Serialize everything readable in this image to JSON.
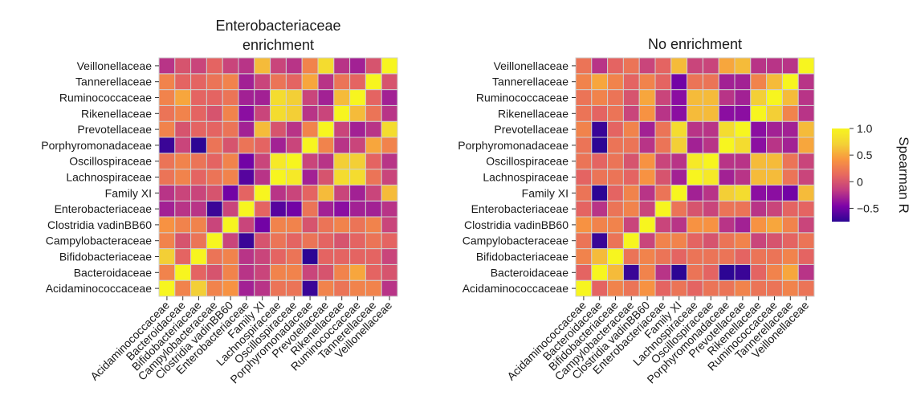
{
  "chart_data": {
    "type": "heatmap",
    "categories": [
      "Acidaminococcaceae",
      "Bacteroidaceae",
      "Bifidobacteriaceae",
      "Campylobacteraceae",
      "Clostridia vadinBB60",
      "Enterobacteriaceae",
      "Family XI",
      "Lachnospiraceae",
      "Oscillospiraceae",
      "Porphyromonadaceae",
      "Prevotellaceae",
      "Rikenellaceae",
      "Ruminococcaceae",
      "Tannerellaceae",
      "Veillonellaceae"
    ],
    "panels": [
      {
        "title_lines": [
          "Enterobacteriaceae",
          "enrichment"
        ],
        "matrix": [
          [
            1.0,
            0.3,
            0.7,
            0.3,
            0.4,
            -0.3,
            -0.2,
            0.2,
            0.2,
            -0.7,
            0.3,
            0.2,
            0.3,
            0.3,
            -0.2
          ],
          [
            0.3,
            1.0,
            0.1,
            0.0,
            0.3,
            -0.2,
            -0.1,
            0.3,
            0.3,
            -0.1,
            0.0,
            0.3,
            0.5,
            0.1,
            0.0
          ],
          [
            0.7,
            0.1,
            1.0,
            0.2,
            0.3,
            -0.2,
            -0.1,
            0.1,
            0.2,
            -0.8,
            0.1,
            0.1,
            0.1,
            0.1,
            -0.1
          ],
          [
            0.3,
            0.0,
            0.2,
            1.0,
            -0.1,
            -0.7,
            0.0,
            0.2,
            0.1,
            0.2,
            0.1,
            0.0,
            0.1,
            0.2,
            0.1
          ],
          [
            0.4,
            0.3,
            0.3,
            -0.1,
            1.0,
            -0.1,
            -0.5,
            0.3,
            0.3,
            0.0,
            0.2,
            0.3,
            0.2,
            0.3,
            -0.1
          ],
          [
            -0.3,
            -0.2,
            -0.2,
            -0.7,
            -0.1,
            1.0,
            0.1,
            -0.6,
            -0.5,
            0.2,
            -0.3,
            -0.4,
            -0.3,
            -0.3,
            -0.2
          ],
          [
            -0.2,
            -0.1,
            -0.1,
            0.0,
            -0.5,
            0.1,
            1.0,
            -0.2,
            -0.1,
            0.1,
            0.6,
            -0.1,
            -0.3,
            -0.1,
            0.6
          ],
          [
            0.2,
            0.3,
            0.1,
            0.2,
            0.3,
            -0.6,
            -0.2,
            1.0,
            0.9,
            -0.3,
            0.0,
            0.8,
            0.8,
            0.2,
            -0.1
          ],
          [
            0.2,
            0.3,
            0.2,
            0.1,
            0.3,
            -0.5,
            -0.1,
            0.9,
            1.0,
            -0.1,
            -0.2,
            0.7,
            0.7,
            0.1,
            -0.2
          ],
          [
            -0.7,
            -0.1,
            -0.8,
            0.2,
            0.0,
            0.2,
            0.1,
            -0.3,
            -0.1,
            1.0,
            0.3,
            -0.2,
            -0.1,
            0.5,
            0.3
          ],
          [
            0.3,
            0.0,
            0.1,
            0.1,
            0.2,
            -0.3,
            0.6,
            0.0,
            -0.2,
            0.3,
            1.0,
            -0.1,
            -0.3,
            -0.2,
            0.8
          ],
          [
            0.2,
            0.3,
            0.1,
            0.0,
            0.3,
            -0.4,
            -0.1,
            0.8,
            0.7,
            -0.2,
            -0.1,
            1.0,
            0.6,
            0.2,
            -0.2
          ],
          [
            0.3,
            0.5,
            0.1,
            0.1,
            0.2,
            -0.3,
            -0.3,
            0.8,
            0.7,
            -0.1,
            -0.3,
            0.6,
            1.0,
            0.1,
            -0.3
          ],
          [
            0.3,
            0.1,
            0.1,
            0.2,
            0.3,
            -0.3,
            -0.1,
            0.2,
            0.1,
            0.5,
            -0.2,
            0.2,
            0.1,
            1.0,
            0.0
          ],
          [
            -0.2,
            0.0,
            -0.1,
            0.1,
            -0.1,
            -0.2,
            0.6,
            -0.1,
            -0.2,
            0.3,
            0.8,
            -0.2,
            -0.3,
            0.0,
            1.0
          ]
        ]
      },
      {
        "title_lines": [
          "No enrichment"
        ],
        "matrix": [
          [
            1.0,
            0.1,
            0.3,
            0.2,
            0.4,
            0.1,
            0.2,
            0.1,
            0.2,
            0.2,
            0.3,
            0.2,
            0.2,
            0.3,
            0.2
          ],
          [
            0.1,
            1.0,
            0.6,
            -0.7,
            0.3,
            -0.2,
            -0.8,
            0.2,
            0.1,
            -0.8,
            -0.7,
            0.1,
            0.3,
            0.5,
            -0.2
          ],
          [
            0.3,
            0.6,
            1.0,
            0.2,
            0.3,
            0.2,
            0.1,
            0.2,
            0.2,
            0.2,
            0.1,
            0.2,
            0.2,
            0.3,
            0.1
          ],
          [
            0.2,
            -0.7,
            0.2,
            1.0,
            -0.1,
            0.3,
            0.3,
            0.1,
            0.0,
            0.2,
            0.3,
            -0.1,
            0.0,
            0.1,
            0.2
          ],
          [
            0.4,
            0.3,
            0.3,
            -0.1,
            1.0,
            -0.1,
            -0.2,
            0.4,
            0.4,
            -0.2,
            -0.3,
            0.4,
            0.5,
            0.3,
            -0.1
          ],
          [
            0.1,
            -0.2,
            0.2,
            0.3,
            -0.1,
            1.0,
            0.2,
            0.0,
            -0.1,
            0.2,
            0.2,
            -0.2,
            -0.1,
            0.1,
            0.1
          ],
          [
            0.2,
            -0.8,
            0.1,
            0.3,
            -0.2,
            0.2,
            1.0,
            -0.3,
            -0.2,
            0.7,
            0.8,
            -0.4,
            -0.4,
            -0.5,
            0.6
          ],
          [
            0.1,
            0.2,
            0.2,
            0.1,
            0.4,
            0.0,
            -0.3,
            1.0,
            0.9,
            -0.3,
            -0.2,
            0.6,
            0.6,
            0.2,
            -0.1
          ],
          [
            0.2,
            0.1,
            0.2,
            0.0,
            0.4,
            -0.1,
            -0.2,
            0.9,
            1.0,
            -0.2,
            -0.2,
            0.6,
            0.6,
            0.2,
            -0.1
          ],
          [
            0.2,
            -0.8,
            0.2,
            0.2,
            -0.2,
            0.2,
            0.7,
            -0.3,
            -0.2,
            1.0,
            0.8,
            -0.4,
            -0.2,
            -0.3,
            0.5
          ],
          [
            0.3,
            -0.7,
            0.1,
            0.3,
            -0.3,
            0.2,
            0.8,
            -0.2,
            -0.2,
            0.8,
            1.0,
            -0.4,
            -0.3,
            -0.3,
            0.6
          ],
          [
            0.2,
            0.1,
            0.2,
            -0.1,
            0.4,
            -0.2,
            -0.4,
            0.6,
            0.6,
            -0.4,
            -0.4,
            1.0,
            0.7,
            0.3,
            -0.2
          ],
          [
            0.2,
            0.3,
            0.2,
            0.0,
            0.5,
            -0.1,
            -0.4,
            0.6,
            0.6,
            -0.2,
            -0.3,
            0.7,
            1.0,
            0.6,
            -0.2
          ],
          [
            0.3,
            0.5,
            0.3,
            0.1,
            0.3,
            0.1,
            -0.5,
            0.2,
            0.2,
            -0.3,
            -0.3,
            0.3,
            0.6,
            1.0,
            -0.2
          ],
          [
            0.2,
            -0.2,
            0.1,
            0.2,
            -0.1,
            0.1,
            0.6,
            -0.1,
            -0.1,
            0.5,
            0.6,
            -0.2,
            -0.2,
            -0.2,
            1.0
          ]
        ]
      }
    ],
    "colorbar": {
      "title": "Spearman R",
      "range": [
        -0.75,
        1.0
      ],
      "ticks": [
        1.0,
        0.5,
        0,
        -0.5
      ],
      "tick_labels": [
        "1.0",
        "0.5",
        "0",
        "−0.5"
      ],
      "colors": [
        "#2c0594",
        "#7e03a8",
        "#c03a83",
        "#e7685f",
        "#f89540",
        "#f3d136",
        "#f7f51f"
      ]
    }
  }
}
